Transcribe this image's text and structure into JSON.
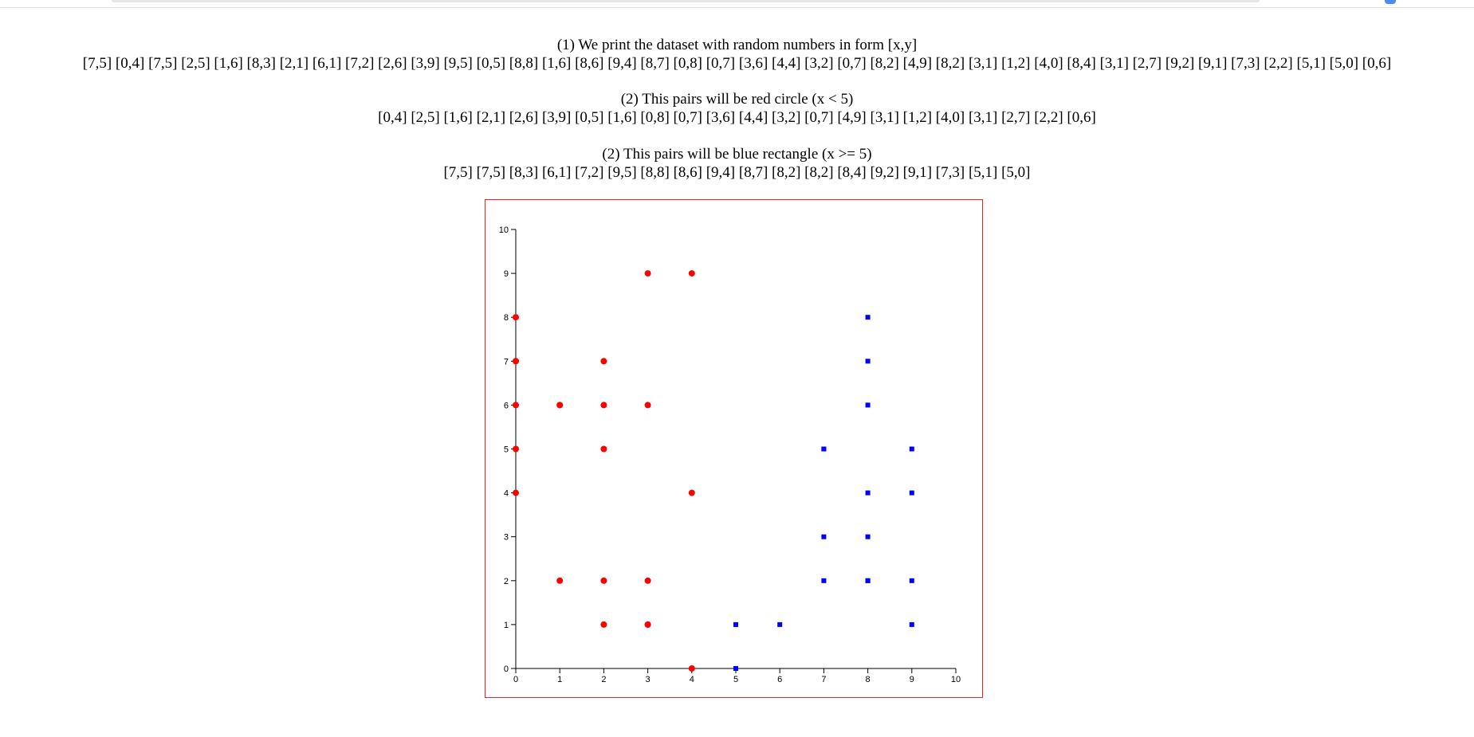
{
  "texts": {
    "line1_title": "(1) We print the dataset with random numbers in form [x,y]",
    "line1_values": "[7,5] [0,4] [7,5] [2,5] [1,6] [8,3] [2,1] [6,1] [7,2] [2,6] [3,9] [9,5] [0,5] [8,8] [1,6] [8,6] [9,4] [8,7] [0,8] [0,7] [3,6] [4,4] [3,2] [0,7] [8,2] [4,9] [8,2] [3,1] [1,2] [4,0] [8,4] [3,1] [2,7] [9,2] [9,1] [7,3] [2,2] [5,1] [5,0] [0,6]",
    "line2_title": "(2) This pairs will be red circle (x < 5)",
    "line2_values": "[0,4] [2,5] [1,6] [2,1] [2,6] [3,9] [0,5] [1,6] [0,8] [0,7] [3,6] [4,4] [3,2] [0,7] [4,9] [3,1] [1,2] [4,0] [3,1] [2,7] [2,2] [0,6]",
    "line3_title": "(2) This pairs will be blue rectangle (x >= 5)",
    "line3_values": "[7,5] [7,5] [8,3] [6,1] [7,2] [9,5] [8,8] [8,6] [9,4] [8,7] [8,2] [8,2] [8,4] [9,2] [9,1] [7,3] [5,1] [5,0]"
  },
  "chart_data": {
    "type": "scatter",
    "title": "",
    "xlabel": "",
    "ylabel": "",
    "xlim": [
      0,
      10
    ],
    "ylim": [
      0,
      10
    ],
    "x_ticks": [
      "0",
      "1",
      "2",
      "3",
      "4",
      "5",
      "6",
      "7",
      "8",
      "9",
      "10"
    ],
    "y_ticks": [
      "0",
      "1",
      "2",
      "3",
      "4",
      "5",
      "6",
      "7",
      "8",
      "9",
      "10"
    ],
    "grid": false,
    "frame_color": "#e0262b",
    "series": [
      {
        "marker": "circle",
        "color": "#ff0000",
        "points": [
          [
            0,
            4
          ],
          [
            2,
            5
          ],
          [
            1,
            6
          ],
          [
            2,
            1
          ],
          [
            2,
            6
          ],
          [
            3,
            9
          ],
          [
            0,
            5
          ],
          [
            1,
            6
          ],
          [
            0,
            8
          ],
          [
            0,
            7
          ],
          [
            3,
            6
          ],
          [
            4,
            4
          ],
          [
            3,
            2
          ],
          [
            0,
            7
          ],
          [
            4,
            9
          ],
          [
            3,
            1
          ],
          [
            1,
            2
          ],
          [
            4,
            0
          ],
          [
            3,
            1
          ],
          [
            2,
            7
          ],
          [
            2,
            2
          ],
          [
            0,
            6
          ]
        ]
      },
      {
        "marker": "square",
        "color": "#0000ff",
        "points": [
          [
            7,
            5
          ],
          [
            7,
            5
          ],
          [
            8,
            3
          ],
          [
            6,
            1
          ],
          [
            7,
            2
          ],
          [
            9,
            5
          ],
          [
            8,
            8
          ],
          [
            8,
            6
          ],
          [
            9,
            4
          ],
          [
            8,
            7
          ],
          [
            8,
            2
          ],
          [
            8,
            2
          ],
          [
            8,
            4
          ],
          [
            9,
            2
          ],
          [
            9,
            1
          ],
          [
            7,
            3
          ],
          [
            5,
            1
          ],
          [
            5,
            0
          ]
        ]
      }
    ]
  }
}
